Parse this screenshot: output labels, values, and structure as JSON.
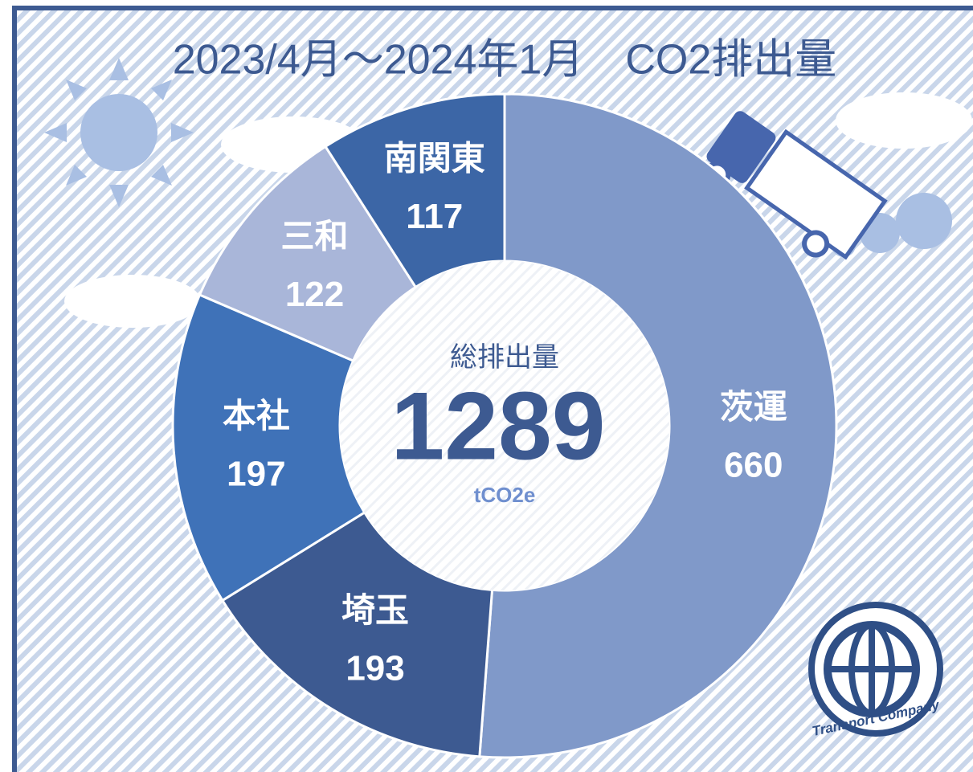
{
  "chart_data": {
    "type": "donut",
    "title": "2023/4月～2024年1月　CO2排出量",
    "categories": [
      "茨運",
      "埼玉",
      "本社",
      "三和",
      "南関東"
    ],
    "values": [
      660,
      193,
      197,
      122,
      117
    ],
    "colors": [
      "#8099c9",
      "#3d5a91",
      "#3f72b8",
      "#a9b6d9",
      "#3c66a6"
    ],
    "center_title": "総排出量",
    "center_value": 1289,
    "center_unit": "tCO2e"
  },
  "logo": {
    "text": "Transport Company"
  }
}
